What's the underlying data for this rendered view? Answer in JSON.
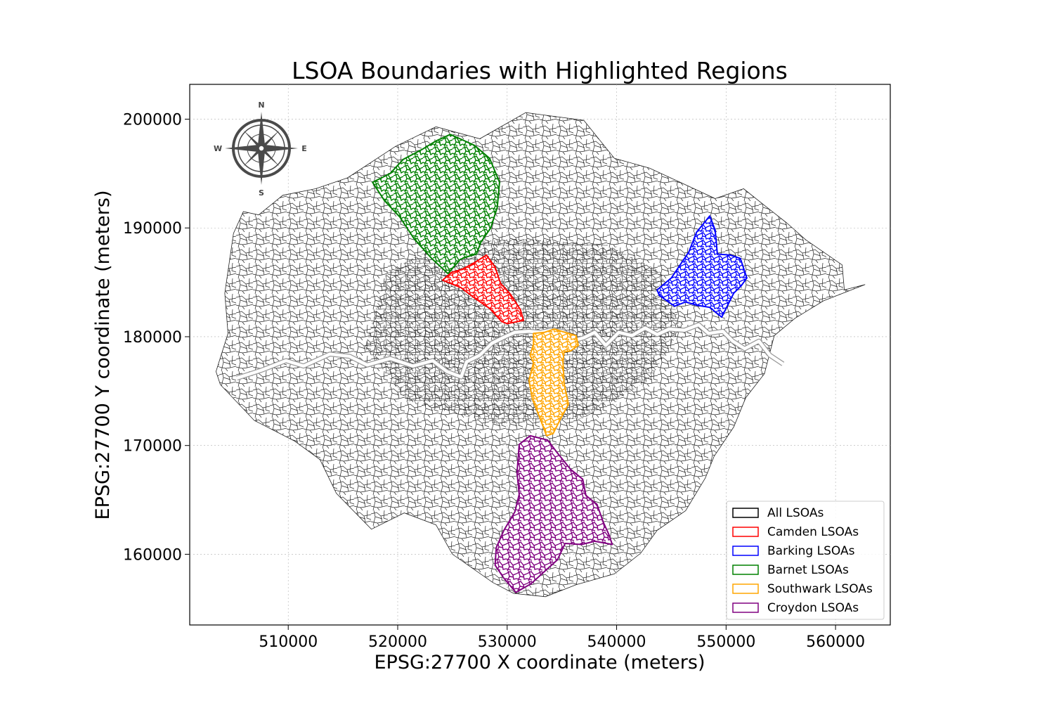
{
  "chart_data": {
    "type": "map",
    "title": "LSOA Boundaries with Highlighted Regions",
    "xlabel": "EPSG:27700 X coordinate (meters)",
    "ylabel": "EPSG:27700 Y coordinate (meters)",
    "xlim": [
      501000,
      565000
    ],
    "ylim": [
      153500,
      203200
    ],
    "xticks": [
      510000,
      520000,
      530000,
      540000,
      550000,
      560000
    ],
    "yticks": [
      160000,
      170000,
      180000,
      190000,
      200000
    ],
    "xtick_labels": [
      "510000",
      "520000",
      "530000",
      "540000",
      "550000",
      "560000"
    ],
    "ytick_labels": [
      "160000",
      "170000",
      "180000",
      "190000",
      "200000"
    ],
    "grid": true,
    "legend_position": "lower-right",
    "compass": {
      "north": "N",
      "south": "S",
      "east": "E",
      "west": "W"
    },
    "outline": [
      [
        503800,
        175600
      ],
      [
        503400,
        176800
      ],
      [
        504500,
        180300
      ],
      [
        504200,
        184000
      ],
      [
        505000,
        189500
      ],
      [
        505900,
        191500
      ],
      [
        507300,
        191200
      ],
      [
        509500,
        193000
      ],
      [
        512500,
        193600
      ],
      [
        515400,
        194600
      ],
      [
        519800,
        197500
      ],
      [
        523500,
        199300
      ],
      [
        527500,
        198200
      ],
      [
        531700,
        200600
      ],
      [
        537000,
        199900
      ],
      [
        539800,
        196400
      ],
      [
        543000,
        195500
      ],
      [
        545800,
        194200
      ],
      [
        549000,
        192700
      ],
      [
        551600,
        193600
      ],
      [
        553600,
        192000
      ],
      [
        555500,
        190500
      ],
      [
        557300,
        188900
      ],
      [
        560600,
        186600
      ],
      [
        560800,
        184300
      ],
      [
        562700,
        184800
      ],
      [
        558900,
        183300
      ],
      [
        556300,
        181700
      ],
      [
        554400,
        180100
      ],
      [
        553500,
        176600
      ],
      [
        551800,
        174400
      ],
      [
        550700,
        171700
      ],
      [
        548900,
        169000
      ],
      [
        548100,
        167000
      ],
      [
        546300,
        164000
      ],
      [
        543700,
        162200
      ],
      [
        542200,
        160100
      ],
      [
        539800,
        158200
      ],
      [
        536300,
        157200
      ],
      [
        533500,
        156100
      ],
      [
        530600,
        156400
      ],
      [
        528700,
        157400
      ],
      [
        525000,
        160000
      ],
      [
        523500,
        162700
      ],
      [
        520600,
        163800
      ],
      [
        517600,
        162300
      ],
      [
        514400,
        165600
      ],
      [
        512900,
        168700
      ],
      [
        510600,
        170400
      ],
      [
        506900,
        172300
      ],
      [
        503800,
        175600
      ]
    ],
    "series": [
      {
        "name": "All LSOAs",
        "color": "#000000",
        "fill": "#ffffff",
        "style": "thin-grid"
      },
      {
        "name": "Camden LSOAs",
        "color": "#ff0000",
        "polygon": [
          [
            524100,
            185200
          ],
          [
            525800,
            184500
          ],
          [
            527100,
            183500
          ],
          [
            528400,
            182600
          ],
          [
            529500,
            181400
          ],
          [
            530000,
            181200
          ],
          [
            531500,
            181500
          ],
          [
            531200,
            182500
          ],
          [
            530300,
            183900
          ],
          [
            529400,
            184900
          ],
          [
            528900,
            186400
          ],
          [
            528100,
            187500
          ],
          [
            527000,
            186800
          ],
          [
            525900,
            186200
          ],
          [
            524900,
            185900
          ],
          [
            524100,
            185200
          ]
        ]
      },
      {
        "name": "Barking LSOAs",
        "color": "#0000ff",
        "polygon": [
          [
            543700,
            184300
          ],
          [
            545000,
            185400
          ],
          [
            546600,
            187800
          ],
          [
            547300,
            189600
          ],
          [
            548500,
            191100
          ],
          [
            549000,
            189800
          ],
          [
            549200,
            187600
          ],
          [
            550400,
            187500
          ],
          [
            551300,
            187200
          ],
          [
            551900,
            185400
          ],
          [
            551400,
            184700
          ],
          [
            550700,
            184000
          ],
          [
            550200,
            183000
          ],
          [
            549600,
            181800
          ],
          [
            548500,
            182700
          ],
          [
            547300,
            182900
          ],
          [
            546300,
            183200
          ],
          [
            545300,
            182800
          ],
          [
            543900,
            183800
          ],
          [
            543700,
            184300
          ]
        ]
      },
      {
        "name": "Barnet LSOAs",
        "color": "#008000",
        "polygon": [
          [
            517700,
            194200
          ],
          [
            519300,
            195000
          ],
          [
            520500,
            196300
          ],
          [
            522200,
            197200
          ],
          [
            523500,
            198000
          ],
          [
            524800,
            198600
          ],
          [
            525900,
            198100
          ],
          [
            527000,
            197600
          ],
          [
            528400,
            196400
          ],
          [
            529300,
            194200
          ],
          [
            529100,
            191900
          ],
          [
            528500,
            190000
          ],
          [
            527600,
            188700
          ],
          [
            527200,
            187600
          ],
          [
            526500,
            187400
          ],
          [
            525700,
            187100
          ],
          [
            524600,
            185800
          ],
          [
            523100,
            187200
          ],
          [
            521500,
            189000
          ],
          [
            520200,
            191000
          ],
          [
            518800,
            192500
          ],
          [
            517700,
            194200
          ]
        ]
      },
      {
        "name": "Southwark LSOAs",
        "color": "#ffa500",
        "polygon": [
          [
            532400,
            180300
          ],
          [
            533400,
            180400
          ],
          [
            534300,
            180700
          ],
          [
            535300,
            180400
          ],
          [
            536300,
            180100
          ],
          [
            536500,
            179200
          ],
          [
            535800,
            178700
          ],
          [
            535200,
            178600
          ],
          [
            535100,
            177700
          ],
          [
            535200,
            175700
          ],
          [
            535600,
            173800
          ],
          [
            534900,
            172500
          ],
          [
            534200,
            171100
          ],
          [
            533600,
            170900
          ],
          [
            533000,
            172500
          ],
          [
            532300,
            174300
          ],
          [
            532000,
            176000
          ],
          [
            532400,
            177600
          ],
          [
            532100,
            178300
          ],
          [
            532400,
            179300
          ],
          [
            532400,
            180300
          ]
        ]
      },
      {
        "name": "Croydon LSOAs",
        "color": "#800080",
        "polygon": [
          [
            531100,
            170100
          ],
          [
            532100,
            170900
          ],
          [
            533700,
            170500
          ],
          [
            534600,
            169300
          ],
          [
            535800,
            167800
          ],
          [
            536900,
            166900
          ],
          [
            537200,
            165400
          ],
          [
            538200,
            164600
          ],
          [
            538800,
            162900
          ],
          [
            539300,
            161800
          ],
          [
            539600,
            160900
          ],
          [
            538000,
            161200
          ],
          [
            536800,
            160900
          ],
          [
            535300,
            161000
          ],
          [
            534600,
            159500
          ],
          [
            533500,
            158500
          ],
          [
            532200,
            157300
          ],
          [
            530800,
            156500
          ],
          [
            529700,
            157800
          ],
          [
            528900,
            159000
          ],
          [
            529000,
            160600
          ],
          [
            529700,
            162200
          ],
          [
            530700,
            163900
          ],
          [
            531100,
            165500
          ],
          [
            530900,
            167500
          ],
          [
            531100,
            170100
          ]
        ]
      }
    ],
    "river_thames": [
      [
        505300,
        176200
      ],
      [
        507500,
        176900
      ],
      [
        509800,
        177800
      ],
      [
        511400,
        177300
      ],
      [
        513800,
        178400
      ],
      [
        515600,
        178200
      ],
      [
        517200,
        177400
      ],
      [
        519300,
        178000
      ],
      [
        521400,
        177300
      ],
      [
        523200,
        177800
      ],
      [
        524500,
        176800
      ],
      [
        525800,
        176300
      ],
      [
        526300,
        177700
      ],
      [
        527500,
        178300
      ],
      [
        528600,
        179400
      ],
      [
        529800,
        180000
      ],
      [
        530700,
        180400
      ],
      [
        532000,
        180500
      ],
      [
        533000,
        180400
      ],
      [
        534000,
        180600
      ],
      [
        535000,
        180500
      ],
      [
        535600,
        180200
      ],
      [
        536300,
        179700
      ],
      [
        537000,
        179900
      ],
      [
        538000,
        180400
      ],
      [
        539000,
        179200
      ],
      [
        540200,
        180400
      ],
      [
        541400,
        180100
      ],
      [
        542600,
        180800
      ],
      [
        543700,
        180200
      ],
      [
        544800,
        180700
      ],
      [
        546200,
        180600
      ],
      [
        547500,
        181100
      ],
      [
        548400,
        180300
      ],
      [
        549700,
        180500
      ],
      [
        550600,
        179600
      ],
      [
        551700,
        178900
      ],
      [
        553000,
        179600
      ],
      [
        554000,
        178300
      ],
      [
        555200,
        177500
      ]
    ]
  }
}
